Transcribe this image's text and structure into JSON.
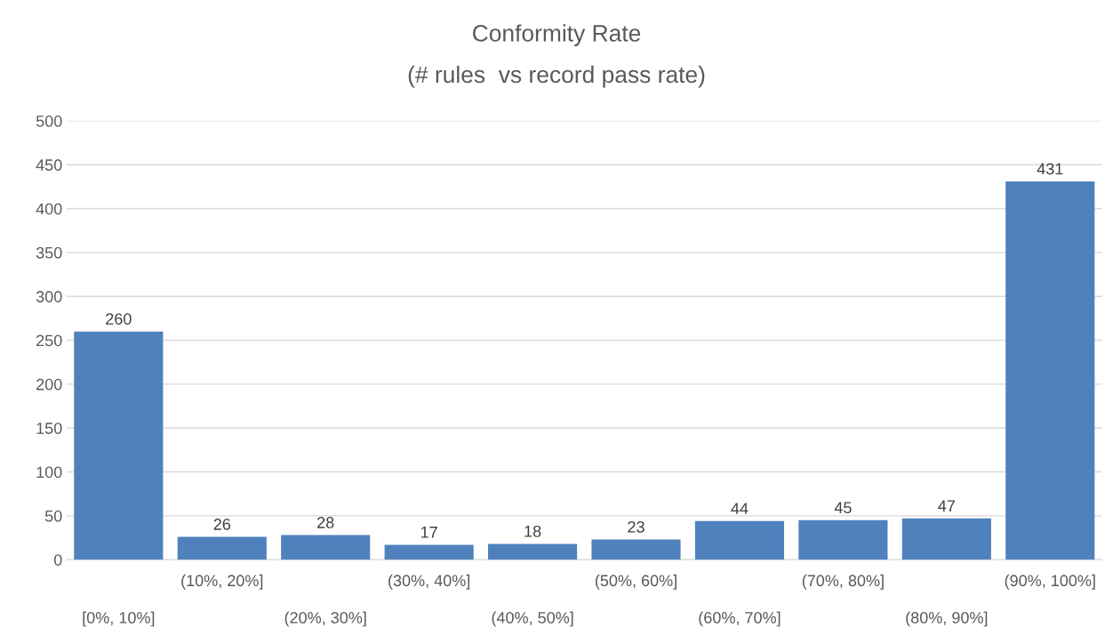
{
  "chart_data": {
    "type": "bar",
    "title": "Conformity Rate",
    "subtitle": "(# rules  vs record pass rate)",
    "categories": [
      "[0%, 10%]",
      "(10%, 20%]",
      "(20%, 30%]",
      "(30%, 40%]",
      "(40%, 50%]",
      "(50%, 60%]",
      "(60%, 70%]",
      "(70%, 80%]",
      "(80%, 90%]",
      "(90%, 100%]"
    ],
    "values": [
      260,
      26,
      28,
      17,
      18,
      23,
      44,
      45,
      47,
      431
    ],
    "color": "#4f81bd",
    "ylim": [
      0,
      500
    ],
    "yticks": [
      0,
      50,
      100,
      150,
      200,
      250,
      300,
      350,
      400,
      450,
      500
    ],
    "grid": "y",
    "data_labels": true,
    "legend": false
  }
}
